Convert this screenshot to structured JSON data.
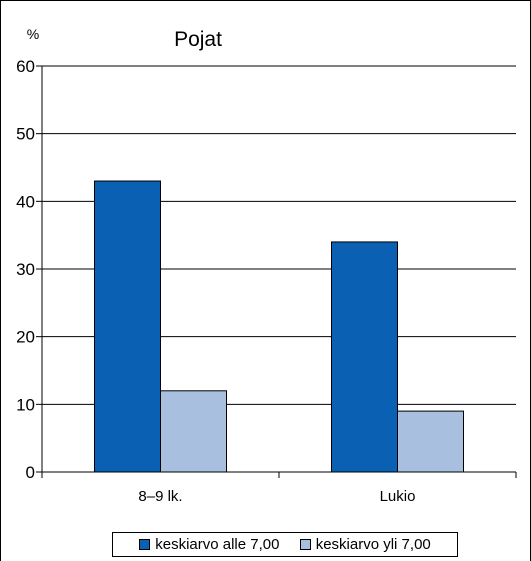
{
  "chart_data": {
    "type": "bar",
    "title": "Pojat",
    "ylabel": "%",
    "xlabel": "",
    "categories": [
      "8–9 lk.",
      "Lukio"
    ],
    "series": [
      {
        "name": "keskiarvo alle 7,00",
        "color": "#0a61b4",
        "values": [
          43,
          34
        ]
      },
      {
        "name": "keskiarvo yli 7,00",
        "color": "#a8bfe0",
        "values": [
          12,
          9
        ]
      }
    ],
    "ylim": [
      0,
      60
    ],
    "yticks": [
      "0",
      "10",
      "20",
      "30",
      "40",
      "50",
      "60"
    ],
    "grid": true,
    "legend_position": "bottom"
  }
}
